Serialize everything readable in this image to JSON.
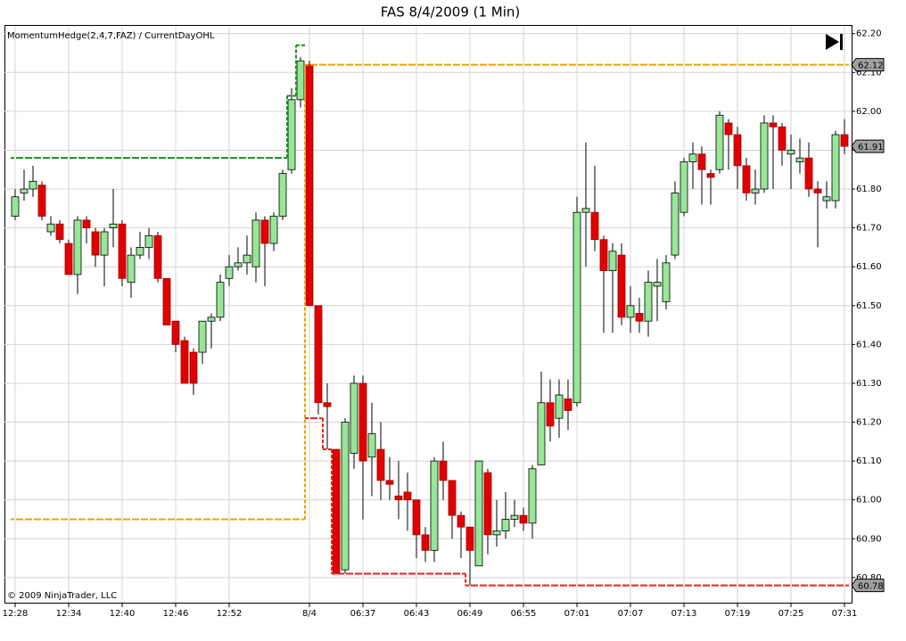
{
  "chart_data": {
    "type": "candlestick",
    "title": "FAS  8/4/2009 (1 Min)",
    "indicator_label": "MomentumHedge(2,4,7,FAZ) / CurrentDayOHL",
    "copyright": "© 2009 NinjaTrader, LLC",
    "categories": [
      "12:28",
      null,
      null,
      null,
      null,
      null,
      "12:34",
      null,
      null,
      null,
      null,
      null,
      "12:40",
      null,
      null,
      null,
      null,
      null,
      "12:46",
      null,
      null,
      null,
      null,
      null,
      "12:52",
      null,
      null,
      null,
      null,
      null,
      null,
      null,
      null,
      "8/4",
      null,
      null,
      null,
      null,
      null,
      "06:37",
      null,
      null,
      null,
      null,
      null,
      "06:43",
      null,
      null,
      null,
      null,
      null,
      "06:49",
      null,
      null,
      null,
      null,
      null,
      "06:55",
      null,
      null,
      null,
      null,
      null,
      "07:01",
      null,
      null,
      null,
      null,
      null,
      "07:07",
      null,
      null,
      null,
      null,
      null,
      "07:13",
      null,
      null,
      null,
      null,
      null,
      "07:19",
      null,
      null,
      null,
      null,
      null,
      "07:25",
      null,
      null,
      null,
      null,
      null,
      "07:31"
    ],
    "open": [
      61.73,
      61.79,
      61.8,
      61.81,
      61.69,
      61.71,
      61.66,
      61.58,
      61.72,
      61.69,
      61.63,
      61.7,
      61.71,
      61.56,
      61.63,
      61.65,
      61.68,
      61.57,
      61.46,
      61.41,
      61.38,
      61.38,
      61.46,
      61.47,
      61.57,
      61.6,
      61.61,
      61.6,
      61.72,
      61.66,
      61.73,
      61.85,
      62.03,
      62.12,
      61.5,
      61.25,
      61.13,
      60.82,
      61.12,
      61.3,
      61.11,
      61.13,
      61.05,
      61.01,
      61.02,
      61.0,
      60.91,
      60.87,
      61.1,
      61.05,
      60.96,
      60.93,
      60.83,
      61.07,
      60.91,
      60.92,
      60.95,
      60.96,
      60.94,
      61.09,
      61.25,
      61.21,
      61.26,
      61.25,
      61.74,
      61.74,
      61.67,
      61.59,
      61.63,
      61.47,
      61.48,
      61.46,
      61.55,
      61.51,
      61.63,
      61.74,
      61.87,
      61.89,
      61.84,
      61.85,
      61.97,
      61.94,
      61.86,
      61.79,
      61.8,
      61.97,
      61.96,
      61.89,
      61.87,
      61.88,
      61.8,
      61.77,
      61.77,
      61.94
    ],
    "high": [
      61.8,
      61.85,
      61.86,
      61.82,
      61.73,
      61.72,
      61.67,
      61.73,
      61.73,
      61.7,
      61.7,
      61.8,
      61.72,
      61.65,
      61.69,
      61.7,
      61.69,
      61.57,
      61.46,
      61.42,
      61.39,
      61.46,
      61.48,
      61.58,
      61.63,
      61.65,
      61.68,
      61.74,
      61.73,
      61.74,
      61.85,
      62.06,
      62.14,
      62.13,
      61.5,
      61.3,
      61.13,
      61.21,
      61.32,
      61.32,
      61.25,
      61.2,
      61.11,
      61.1,
      61.07,
      61.0,
      60.93,
      61.11,
      61.15,
      61.05,
      60.97,
      60.93,
      61.1,
      61.08,
      61.0,
      61.02,
      61.0,
      60.98,
      61.09,
      61.33,
      61.31,
      61.31,
      61.31,
      61.78,
      61.92,
      61.86,
      61.68,
      61.66,
      61.66,
      61.55,
      61.52,
      61.59,
      61.62,
      61.63,
      61.82,
      61.88,
      61.92,
      61.91,
      61.85,
      62.0,
      61.98,
      61.96,
      61.88,
      61.85,
      61.99,
      61.99,
      61.97,
      61.94,
      61.93,
      61.92,
      61.82,
      61.82,
      61.95,
      61.98
    ],
    "low": [
      61.72,
      61.77,
      61.78,
      61.72,
      61.68,
      61.66,
      61.58,
      61.53,
      61.66,
      61.6,
      61.55,
      61.65,
      61.55,
      61.52,
      61.62,
      61.62,
      61.56,
      61.45,
      61.38,
      61.3,
      61.27,
      61.35,
      61.39,
      61.46,
      61.55,
      61.59,
      61.58,
      61.56,
      61.55,
      61.64,
      61.72,
      61.84,
      62.01,
      61.5,
      61.22,
      61.13,
      60.81,
      60.81,
      61.08,
      60.95,
      61.01,
      61.0,
      61.0,
      60.95,
      60.92,
      60.85,
      60.84,
      60.84,
      61.0,
      60.9,
      60.85,
      60.78,
      60.83,
      60.86,
      60.88,
      60.9,
      60.93,
      60.92,
      60.9,
      61.09,
      61.15,
      61.16,
      61.18,
      61.24,
      61.6,
      61.64,
      61.43,
      61.43,
      61.45,
      61.43,
      61.43,
      61.42,
      61.46,
      61.49,
      61.62,
      61.73,
      61.8,
      61.76,
      61.76,
      61.84,
      61.85,
      61.8,
      61.77,
      61.76,
      61.79,
      61.8,
      61.86,
      61.8,
      61.84,
      61.78,
      61.65,
      61.75,
      61.75,
      61.89
    ],
    "close": [
      61.78,
      61.8,
      61.82,
      61.73,
      61.71,
      61.67,
      61.58,
      61.72,
      61.7,
      61.63,
      61.69,
      61.71,
      61.57,
      61.63,
      61.65,
      61.68,
      61.57,
      61.45,
      61.4,
      61.3,
      61.3,
      61.46,
      61.47,
      61.56,
      61.6,
      61.61,
      61.63,
      61.72,
      61.66,
      61.73,
      61.84,
      62.03,
      62.13,
      61.5,
      61.25,
      61.24,
      60.81,
      61.2,
      61.3,
      61.1,
      61.17,
      61.05,
      61.04,
      61.0,
      61.0,
      60.91,
      60.87,
      61.1,
      61.05,
      60.96,
      60.93,
      60.87,
      61.1,
      60.91,
      60.92,
      60.95,
      60.96,
      60.94,
      61.08,
      61.25,
      61.19,
      61.27,
      61.23,
      61.74,
      61.75,
      61.67,
      61.59,
      61.64,
      61.47,
      61.5,
      61.46,
      61.56,
      61.56,
      61.61,
      61.79,
      61.87,
      61.89,
      61.85,
      61.83,
      61.99,
      61.94,
      61.86,
      61.79,
      61.8,
      61.97,
      61.96,
      61.9,
      61.9,
      61.88,
      61.8,
      61.79,
      61.78,
      61.94,
      61.91
    ],
    "up_color": "#98e698",
    "down_color": "#e00000",
    "series": [
      {
        "color": "#e8a400",
        "values": [
          60.95,
          60.95,
          60.95,
          60.95,
          60.95,
          60.95,
          60.95,
          60.95,
          60.95,
          60.95,
          60.95,
          60.95,
          60.95,
          60.95,
          60.95,
          60.95,
          60.95,
          60.95,
          60.95,
          60.95,
          60.95,
          60.95,
          60.95,
          60.95,
          60.95,
          60.95,
          60.95,
          60.95,
          60.95,
          60.95,
          60.95,
          60.95,
          60.95,
          62.12,
          62.12,
          62.12,
          62.12,
          62.12,
          62.12,
          62.12,
          62.12,
          62.12,
          62.12,
          62.12,
          62.12,
          62.12,
          62.12,
          62.12,
          62.12,
          62.12,
          62.12,
          62.12,
          62.12,
          62.12,
          62.12,
          62.12,
          62.12,
          62.12,
          62.12,
          62.12,
          62.12,
          62.12,
          62.12,
          62.12,
          62.12,
          62.12,
          62.12,
          62.12,
          62.12,
          62.12,
          62.12,
          62.12,
          62.12,
          62.12,
          62.12,
          62.12,
          62.12,
          62.12,
          62.12,
          62.12,
          62.12,
          62.12,
          62.12,
          62.12,
          62.12,
          62.12,
          62.12,
          62.12,
          62.12,
          62.12,
          62.12,
          62.12,
          62.12,
          62.12
        ]
      },
      {
        "color": "#1e8c1e",
        "values": [
          61.88,
          61.88,
          61.88,
          61.88,
          61.88,
          61.88,
          61.88,
          61.88,
          61.88,
          61.88,
          61.88,
          61.88,
          61.88,
          61.88,
          61.88,
          61.88,
          61.88,
          61.88,
          61.88,
          61.88,
          61.88,
          61.88,
          61.88,
          61.88,
          61.88,
          61.88,
          61.88,
          61.88,
          61.88,
          61.88,
          61.88,
          62.04,
          62.17,
          null,
          null,
          null,
          null,
          null,
          null,
          null,
          null,
          null,
          null,
          null,
          null,
          null,
          null,
          null,
          null,
          null,
          null,
          null,
          null,
          null,
          null,
          null,
          null,
          null,
          null,
          null,
          null,
          null,
          null,
          null,
          null,
          null,
          null,
          null,
          null,
          null,
          null,
          null,
          null,
          null,
          null,
          null,
          null,
          null,
          null,
          null,
          null,
          null,
          null,
          null,
          null,
          null,
          null,
          null,
          null,
          null,
          null,
          null,
          null,
          null
        ]
      },
      {
        "color": "#e82020",
        "values": [
          null,
          null,
          null,
          null,
          null,
          null,
          null,
          null,
          null,
          null,
          null,
          null,
          null,
          null,
          null,
          null,
          null,
          null,
          null,
          null,
          null,
          null,
          null,
          null,
          null,
          null,
          null,
          null,
          null,
          null,
          null,
          null,
          null,
          61.21,
          61.21,
          61.13,
          60.81,
          60.81,
          60.81,
          60.81,
          60.81,
          60.81,
          60.81,
          60.81,
          60.81,
          60.81,
          60.81,
          60.81,
          60.81,
          60.81,
          60.81,
          60.78,
          60.78,
          60.78,
          60.78,
          60.78,
          60.78,
          60.78,
          60.78,
          60.78,
          60.78,
          60.78,
          60.78,
          60.78,
          60.78,
          60.78,
          60.78,
          60.78,
          60.78,
          60.78,
          60.78,
          60.78,
          60.78,
          60.78,
          60.78,
          60.78,
          60.78,
          60.78,
          60.78,
          60.78,
          60.78,
          60.78,
          60.78,
          60.78,
          60.78,
          60.78,
          60.78,
          60.78,
          60.78,
          60.78,
          60.78,
          60.78,
          60.78,
          60.78
        ]
      }
    ],
    "price_markers": [
      62.12,
      61.91,
      60.78
    ],
    "ylim": [
      60.74,
      62.22
    ],
    "yticks": [
      {
        "value": 62.2,
        "label": "62.20"
      },
      {
        "value": 62.1,
        "label": "62.10"
      },
      {
        "value": 62.0,
        "label": "62.00"
      },
      {
        "value": 61.9,
        "label": "61.90"
      },
      {
        "value": 61.8,
        "label": "61.80"
      },
      {
        "value": 61.7,
        "label": "61.70"
      },
      {
        "value": 61.6,
        "label": "61.60"
      },
      {
        "value": 61.5,
        "label": "61.50"
      },
      {
        "value": 61.4,
        "label": "61.40"
      },
      {
        "value": 61.3,
        "label": "61.30"
      },
      {
        "value": 61.2,
        "label": "61.20"
      },
      {
        "value": 61.1,
        "label": "61.10"
      },
      {
        "value": 61.0,
        "label": "61.00"
      },
      {
        "value": 60.9,
        "label": "60.90"
      },
      {
        "value": 60.8,
        "label": "60.80"
      }
    ],
    "grid": true
  }
}
